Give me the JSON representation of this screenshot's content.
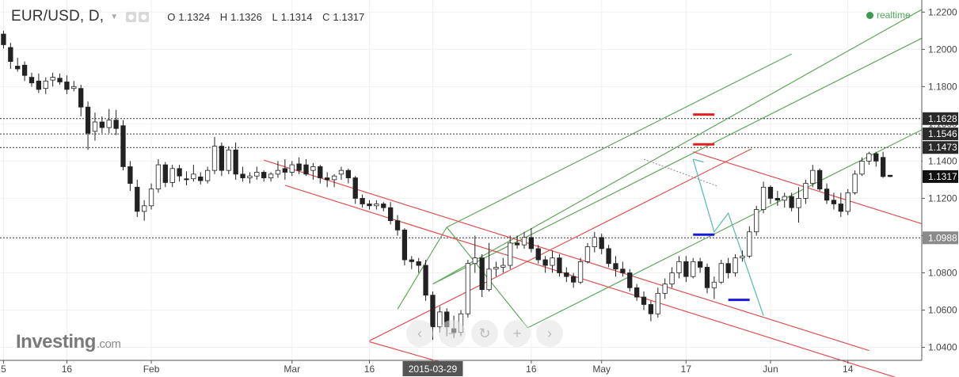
{
  "header": {
    "symbol": "EUR/USD, D,",
    "open_label": "O",
    "open_value": "1.1324",
    "high_label": "H",
    "high_value": "1.1326",
    "low_label": "L",
    "low_value": "1.1314",
    "close_label": "C",
    "close_value": "1.1317"
  },
  "realtime_label": "realtime",
  "logo": {
    "main": "Investing",
    "suffix": ".com"
  },
  "nav_buttons": [
    "‹",
    "−",
    "↻",
    "+",
    "›"
  ],
  "colors": {
    "bull_candle": "#ffffff",
    "bear_candle": "#222222",
    "green_line": "#5fa85a",
    "red_line": "#e05050",
    "projection": "#5fbfb0",
    "level_red": "#e02020",
    "level_blue": "#1a1adf",
    "realtime_dot": "#3b9a4c"
  },
  "chart_data": {
    "type": "candlestick",
    "symbol": "EUR/USD",
    "timeframe": "D",
    "y_range": [
      1.033,
      1.2265
    ],
    "y_ticks": [
      "1.2200",
      "1.2000",
      "1.1800",
      "1.1600",
      "1.1400",
      "1.1200",
      "1.1000",
      "1.0800",
      "1.0600",
      "1.0400"
    ],
    "x_ticks": [
      {
        "label": "5",
        "index": 0
      },
      {
        "label": "16",
        "index": 9
      },
      {
        "label": "Feb",
        "index": 21
      },
      {
        "label": "Mar",
        "index": 41
      },
      {
        "label": "16",
        "index": 52
      },
      {
        "label": "2015-03-29",
        "index": 61
      },
      {
        "label": "16",
        "index": 75
      },
      {
        "label": "May",
        "index": 85
      },
      {
        "label": "17",
        "index": 97
      },
      {
        "label": "Jun",
        "index": 109
      },
      {
        "label": "14",
        "index": 120
      }
    ],
    "total_slots": 131,
    "hover_date": "2015-03-29",
    "horizontal_levels": [
      {
        "value": 1.1628,
        "label": "1.1628",
        "tag": "dark"
      },
      {
        "value": 1.1546,
        "label": "1.1546",
        "tag": "dark"
      },
      {
        "value": 1.1473,
        "label": "1.1473",
        "tag": "dark"
      },
      {
        "value": 1.0988,
        "label": "1.0988",
        "tag": "gray"
      }
    ],
    "last_price": {
      "value": 1.1317,
      "label": "1.1317"
    },
    "partial_label": {
      "value": 1.14,
      "label": "1.1400"
    },
    "candles": [
      [
        1.2082,
        1.21,
        1.2005,
        1.2025
      ],
      [
        1.201,
        1.2035,
        1.1895,
        1.1935
      ],
      [
        1.191,
        1.1955,
        1.188,
        1.1895
      ],
      [
        1.1915,
        1.1935,
        1.183,
        1.186
      ],
      [
        1.185,
        1.1875,
        1.18,
        1.182
      ],
      [
        1.183,
        1.187,
        1.1765,
        1.1785
      ],
      [
        1.179,
        1.185,
        1.176,
        1.183
      ],
      [
        1.1835,
        1.1875,
        1.18,
        1.185
      ],
      [
        1.1845,
        1.187,
        1.181,
        1.1825
      ],
      [
        1.1825,
        1.186,
        1.176,
        1.1785
      ],
      [
        1.179,
        1.183,
        1.1775,
        1.18
      ],
      [
        1.179,
        1.181,
        1.164,
        1.169
      ],
      [
        1.169,
        1.172,
        1.146,
        1.155
      ],
      [
        1.156,
        1.166,
        1.151,
        1.161
      ],
      [
        1.161,
        1.164,
        1.155,
        1.158
      ],
      [
        1.158,
        1.168,
        1.155,
        1.162
      ],
      [
        1.162,
        1.1675,
        1.154,
        1.1575
      ],
      [
        1.159,
        1.162,
        1.135,
        1.137
      ],
      [
        1.137,
        1.14,
        1.124,
        1.128
      ],
      [
        1.126,
        1.13,
        1.11,
        1.113
      ],
      [
        1.113,
        1.119,
        1.108,
        1.116
      ],
      [
        1.116,
        1.128,
        1.114,
        1.125
      ],
      [
        1.125,
        1.141,
        1.123,
        1.138
      ],
      [
        1.138,
        1.1395,
        1.126,
        1.1285
      ],
      [
        1.1285,
        1.138,
        1.126,
        1.136
      ],
      [
        1.136,
        1.138,
        1.129,
        1.132
      ],
      [
        1.1305,
        1.1345,
        1.127,
        1.13
      ],
      [
        1.1305,
        1.138,
        1.129,
        1.133
      ],
      [
        1.1315,
        1.134,
        1.1275,
        1.1295
      ],
      [
        1.1295,
        1.137,
        1.128,
        1.135
      ],
      [
        1.135,
        1.153,
        1.133,
        1.148
      ],
      [
        1.148,
        1.15,
        1.132,
        1.135
      ],
      [
        1.135,
        1.148,
        1.133,
        1.146
      ],
      [
        1.146,
        1.15,
        1.13,
        1.133
      ],
      [
        1.133,
        1.137,
        1.129,
        1.131
      ],
      [
        1.131,
        1.134,
        1.128,
        1.132
      ],
      [
        1.132,
        1.137,
        1.13,
        1.134
      ],
      [
        1.134,
        1.135,
        1.129,
        1.131
      ],
      [
        1.131,
        1.134,
        1.129,
        1.133
      ],
      [
        1.133,
        1.14,
        1.131,
        1.135
      ],
      [
        1.136,
        1.141,
        1.13,
        1.134
      ],
      [
        1.134,
        1.14,
        1.132,
        1.138
      ],
      [
        1.1385,
        1.142,
        1.133,
        1.135
      ],
      [
        1.138,
        1.141,
        1.132,
        1.133
      ],
      [
        1.135,
        1.139,
        1.13,
        1.137
      ],
      [
        1.137,
        1.138,
        1.128,
        1.131
      ],
      [
        1.131,
        1.134,
        1.126,
        1.13
      ],
      [
        1.13,
        1.133,
        1.126,
        1.132
      ],
      [
        1.133,
        1.137,
        1.13,
        1.135
      ],
      [
        1.135,
        1.136,
        1.128,
        1.131
      ],
      [
        1.131,
        1.132,
        1.117,
        1.12
      ],
      [
        1.12,
        1.122,
        1.115,
        1.117
      ],
      [
        1.117,
        1.119,
        1.114,
        1.116
      ],
      [
        1.116,
        1.119,
        1.114,
        1.117
      ],
      [
        1.117,
        1.118,
        1.113,
        1.115
      ],
      [
        1.115,
        1.118,
        1.106,
        1.108
      ],
      [
        1.108,
        1.111,
        1.1,
        1.103
      ],
      [
        1.103,
        1.104,
        1.084,
        1.087
      ],
      [
        1.087,
        1.089,
        1.082,
        1.086
      ],
      [
        1.086,
        1.088,
        1.08,
        1.084
      ],
      [
        1.084,
        1.087,
        1.065,
        1.068
      ],
      [
        1.068,
        1.07,
        1.044,
        1.051
      ],
      [
        1.051,
        1.062,
        1.048,
        1.059
      ],
      [
        1.059,
        1.061,
        1.046,
        1.051
      ],
      [
        1.05,
        1.057,
        1.045,
        1.048
      ],
      [
        1.048,
        1.06,
        1.046,
        1.058
      ],
      [
        1.058,
        1.087,
        1.056,
        1.085
      ],
      [
        1.085,
        1.1,
        1.08,
        1.088
      ],
      [
        1.088,
        1.09,
        1.067,
        1.071
      ],
      [
        1.071,
        1.096,
        1.07,
        1.082
      ],
      [
        1.082,
        1.086,
        1.078,
        1.083
      ],
      [
        1.083,
        1.088,
        1.08,
        1.084
      ],
      [
        1.084,
        1.1,
        1.082,
        1.096
      ],
      [
        1.096,
        1.1,
        1.093,
        1.095
      ],
      [
        1.095,
        1.102,
        1.093,
        1.099
      ],
      [
        1.099,
        1.104,
        1.091,
        1.093
      ],
      [
        1.093,
        1.095,
        1.085,
        1.087
      ],
      [
        1.087,
        1.089,
        1.08,
        1.084
      ],
      [
        1.084,
        1.092,
        1.08,
        1.088
      ],
      [
        1.088,
        1.09,
        1.078,
        1.08
      ],
      [
        1.08,
        1.083,
        1.075,
        1.078
      ],
      [
        1.078,
        1.08,
        1.072,
        1.075
      ],
      [
        1.075,
        1.088,
        1.074,
        1.086
      ],
      [
        1.086,
        1.096,
        1.085,
        1.094
      ],
      [
        1.094,
        1.102,
        1.091,
        1.099
      ],
      [
        1.099,
        1.101,
        1.09,
        1.093
      ],
      [
        1.093,
        1.095,
        1.083,
        1.085
      ],
      [
        1.085,
        1.089,
        1.078,
        1.082
      ],
      [
        1.082,
        1.086,
        1.078,
        1.08
      ],
      [
        1.08,
        1.082,
        1.07,
        1.072
      ],
      [
        1.072,
        1.074,
        1.065,
        1.067
      ],
      [
        1.067,
        1.07,
        1.06,
        1.063
      ],
      [
        1.063,
        1.065,
        1.054,
        1.058
      ],
      [
        1.058,
        1.072,
        1.056,
        1.069
      ],
      [
        1.069,
        1.077,
        1.066,
        1.074
      ],
      [
        1.074,
        1.083,
        1.072,
        1.08
      ],
      [
        1.08,
        1.089,
        1.077,
        1.086
      ],
      [
        1.086,
        1.089,
        1.075,
        1.078
      ],
      [
        1.078,
        1.088,
        1.077,
        1.086
      ],
      [
        1.086,
        1.088,
        1.08,
        1.083
      ],
      [
        1.083,
        1.085,
        1.069,
        1.072
      ],
      [
        1.072,
        1.078,
        1.066,
        1.075
      ],
      [
        1.075,
        1.087,
        1.074,
        1.085
      ],
      [
        1.085,
        1.088,
        1.077,
        1.08
      ],
      [
        1.08,
        1.09,
        1.078,
        1.088
      ],
      [
        1.088,
        1.092,
        1.086,
        1.089
      ],
      [
        1.089,
        1.105,
        1.088,
        1.102
      ],
      [
        1.102,
        1.116,
        1.1,
        1.114
      ],
      [
        1.114,
        1.129,
        1.112,
        1.126
      ],
      [
        1.126,
        1.127,
        1.117,
        1.12
      ],
      [
        1.12,
        1.124,
        1.116,
        1.119
      ],
      [
        1.119,
        1.123,
        1.115,
        1.121
      ],
      [
        1.121,
        1.123,
        1.113,
        1.115
      ],
      [
        1.115,
        1.126,
        1.107,
        1.12
      ],
      [
        1.12,
        1.13,
        1.117,
        1.128
      ],
      [
        1.128,
        1.138,
        1.126,
        1.135
      ],
      [
        1.135,
        1.136,
        1.124,
        1.125
      ],
      [
        1.125,
        1.128,
        1.117,
        1.119
      ],
      [
        1.119,
        1.123,
        1.114,
        1.117
      ],
      [
        1.117,
        1.123,
        1.11,
        1.113
      ],
      [
        1.113,
        1.125,
        1.111,
        1.123
      ],
      [
        1.123,
        1.135,
        1.122,
        1.133
      ],
      [
        1.133,
        1.142,
        1.132,
        1.14
      ],
      [
        1.14,
        1.145,
        1.138,
        1.144
      ],
      [
        1.144,
        1.145,
        1.137,
        1.14
      ],
      [
        1.142,
        1.145,
        1.131,
        1.1317
      ],
      [
        1.1324,
        1.1326,
        1.1314,
        1.1317
      ]
    ]
  }
}
